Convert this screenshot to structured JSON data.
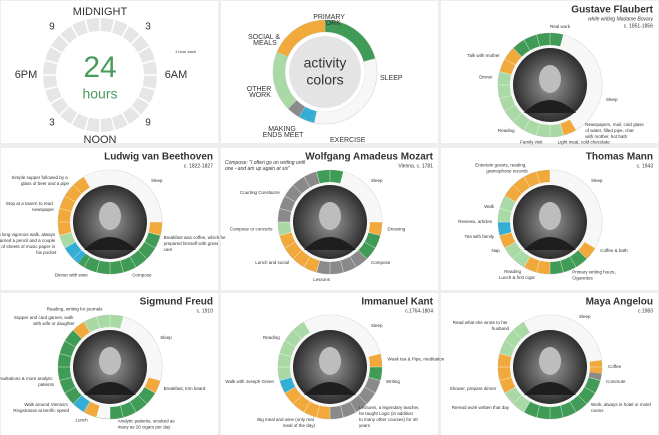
{
  "clock": {
    "top": "MIDNIGHT",
    "right": "6AM",
    "bottom": "NOON",
    "left": "6PM",
    "corners": [
      "3",
      "9",
      "3",
      "9"
    ],
    "center_number": "24",
    "center_label": "hours",
    "note": "1 hour each"
  },
  "legend": {
    "title_line1": "activity",
    "title_line2": "colors",
    "items": [
      {
        "label": "PRIMARY WORK",
        "color": "#3f9b55"
      },
      {
        "label": "SLEEP",
        "color": "#f7f7f7"
      },
      {
        "label": "SOCIAL & MEALS",
        "color": "#f2a93b"
      },
      {
        "label": "OTHER WORK",
        "color": "#a9d9a4"
      },
      {
        "label": "EXERCISE",
        "color": "#35aed6"
      },
      {
        "label": "MAKING ENDS MEET",
        "color": "#8a8a8a"
      }
    ]
  },
  "people": [
    {
      "name": "Gustave Flaubert",
      "subtitle": "while writing Madame Bovary",
      "date": "c. 1851-1856",
      "activities": [
        [
          [
            21,
            24
          ],
          [
            0,
            1
          ]
        ],
        [
          [
            1,
            10
          ]
        ],
        [
          [
            10,
            11
          ],
          [
            19,
            21
          ]
        ],
        [
          [
            11,
            19
          ]
        ],
        [],
        []
      ],
      "notes": [
        "Real work",
        "Talk with mother",
        "Dinner",
        "Sleep",
        "Reading",
        "Family visit",
        "Light meal, cold chocolate",
        "Newspapers, mail, cold glass of water, filled pipe, chat with mother, hot bath"
      ]
    },
    {
      "name": "Ludwig van Beethoven",
      "date": "c. 1822-1827",
      "activities": [
        [
          [
            7,
            14.5
          ]
        ],
        [
          [
            22,
            24
          ],
          [
            0,
            6
          ]
        ],
        [
          [
            6,
            7
          ],
          [
            17,
            22
          ]
        ],
        [
          [
            16,
            17
          ]
        ],
        [
          [
            14.5,
            16
          ]
        ],
        []
      ],
      "notes": [
        "Simple supper followed by a glass of beer and a pipe",
        "Stop at a tavern to read newspaper",
        "Sleep",
        "A long vigorous walk, always carried a pencil and a couple of sheets of music paper in his pocket",
        "Dinner with wine",
        "Breakfast was coffee, which he prepared himself with great care",
        "Compose"
      ]
    },
    {
      "name": "Wolfgang Amadeus Mozart",
      "subtitle": "Compose: \"I often go on writing until one - and am up again at six\"",
      "date": "Vienna, c. 1781",
      "activities": [
        [
          [
            7,
            9
          ],
          [
            23,
            24
          ],
          [
            0,
            1
          ]
        ],
        [
          [
            1,
            6
          ]
        ],
        [
          [
            6,
            7
          ],
          [
            13,
            17
          ]
        ],
        [
          [
            17,
            18
          ]
        ],
        [],
        [
          [
            9,
            13
          ],
          [
            18,
            23
          ]
        ]
      ],
      "notes": [
        "Courting Constanze",
        "Sleep",
        "Compose or concerts",
        "Dressing",
        "Lunch and social",
        "Lessons",
        "Compose"
      ]
    },
    {
      "name": "Thomas Mann",
      "date": "c. 1943",
      "activities": [
        [
          [
            9,
            12
          ]
        ],
        [
          [
            0,
            8
          ]
        ],
        [
          [
            8,
            9
          ],
          [
            12,
            14
          ],
          [
            16,
            17
          ],
          [
            20,
            24
          ]
        ],
        [
          [
            14,
            16
          ],
          [
            18,
            20
          ]
        ],
        [
          [
            17,
            18
          ]
        ],
        []
      ],
      "notes": [
        "Entertain guests, reading, gramophone records",
        "Sleep",
        "Walk",
        "Reviews, articles",
        "Tea with family",
        "Nap",
        "Coffee & bath",
        "Reading",
        "Lunch & first cigar",
        "Primary writing hours, Cigarettes"
      ]
    },
    {
      "name": "Sigmund Freud",
      "date": "c. 1910",
      "activities": [
        [
          [
            8,
            12
          ],
          [
            15,
            21
          ]
        ],
        [
          [
            1,
            7
          ]
        ],
        [
          [
            7,
            8
          ],
          [
            13,
            14
          ],
          [
            21,
            22
          ]
        ],
        [
          [
            22,
            24
          ],
          [
            0,
            1
          ]
        ],
        [
          [
            14,
            15
          ]
        ],
        []
      ],
      "notes": [
        "Supper and card games, walk with wife or daughter",
        "Reading, writing for journals",
        "Sleep",
        "Consultations & more analytic patients",
        "Breakfast, trim beard",
        "Walk around Vienna's Ringstrasse at terrific speed",
        "Lunch",
        "Analytic patients, smoked as many as 20 cigars per day"
      ]
    },
    {
      "name": "Immanuel Kant",
      "date": "c.1764-1804",
      "activities": [
        [
          [
            6,
            7
          ]
        ],
        [
          [
            22,
            24
          ],
          [
            0,
            5
          ]
        ],
        [
          [
            5,
            6
          ],
          [
            12,
            16
          ]
        ],
        [
          [
            17,
            22
          ]
        ],
        [
          [
            16,
            17
          ]
        ],
        [
          [
            7,
            12
          ]
        ]
      ],
      "notes": [
        "Reading",
        "Sleep",
        "Walk with Joseph Green",
        "Weak tea & Pipe, meditation",
        "Writing",
        "Lectures, a legendary teacher, he taught Logic (in addition to many other courses) for 40 years",
        "Big meal and wine (only real meal of the day)"
      ]
    },
    {
      "name": "Maya Angelou",
      "date": "c.1983",
      "activities": [
        [
          [
            7,
            14
          ]
        ],
        [
          [
            22,
            24
          ],
          [
            0,
            5.5
          ]
        ],
        [
          [
            5.5,
            6.5
          ],
          [
            16,
            19
          ]
        ],
        [
          [
            14,
            16
          ],
          [
            19,
            22
          ]
        ],
        [],
        [
          [
            6.5,
            7
          ]
        ]
      ],
      "notes": [
        "Read what she wrote to her husband",
        "Sleep",
        "Coffee",
        "Commute",
        "Work, always in hotel or motel rooms",
        "Reread work written that day",
        "Shower, prepare dinner"
      ]
    }
  ]
}
